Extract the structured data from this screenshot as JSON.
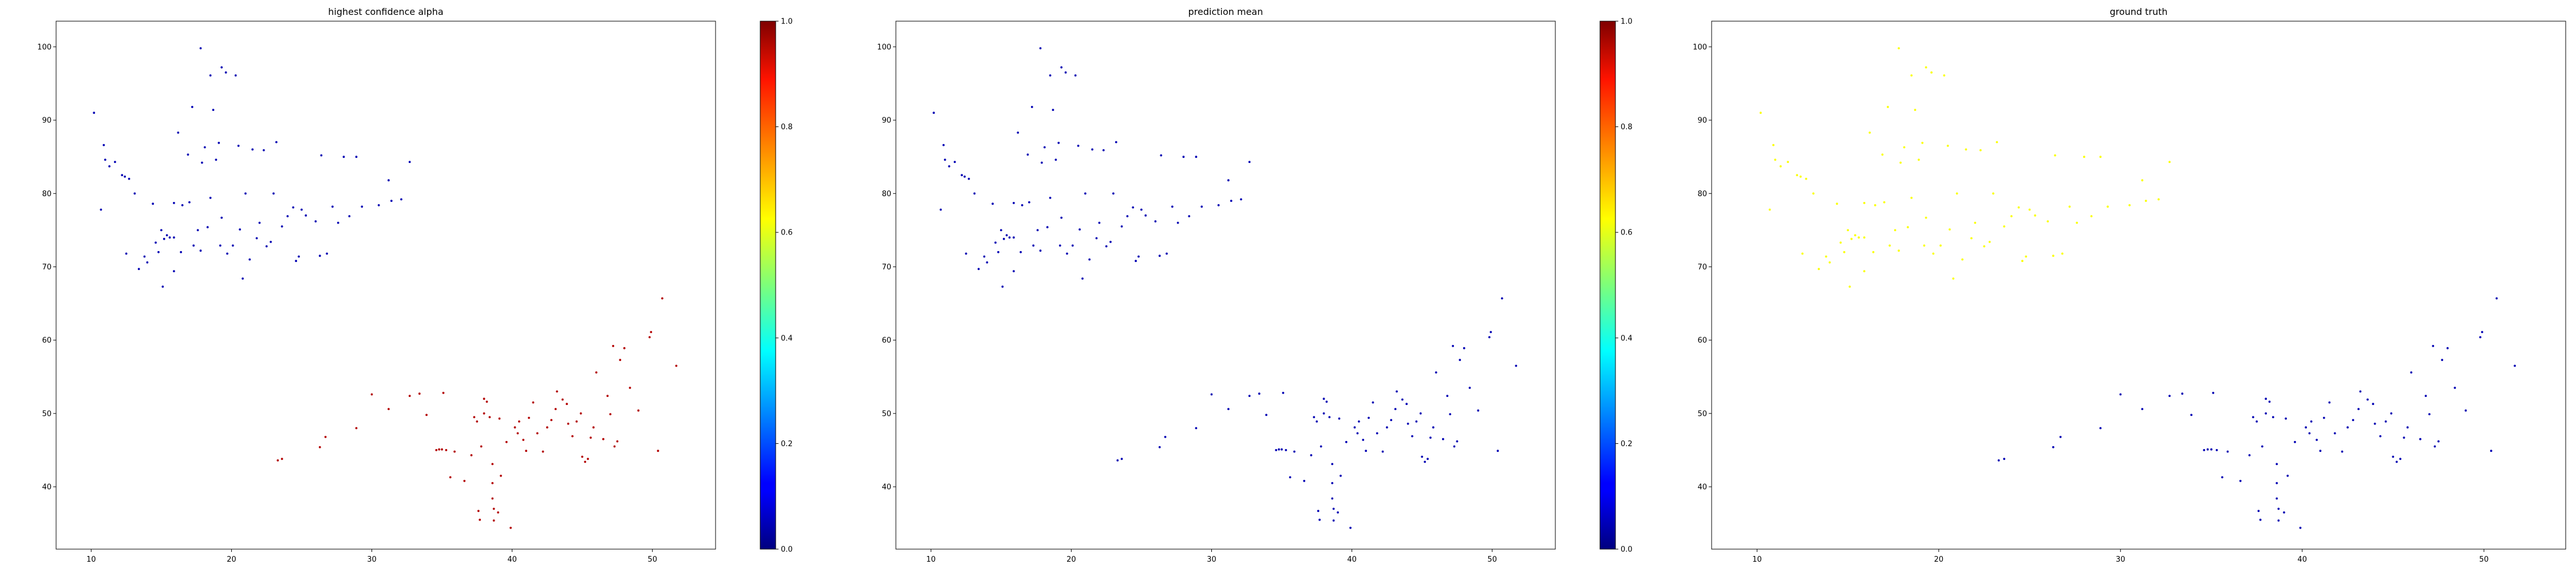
{
  "chart_data": [
    {
      "type": "scatter",
      "title": "highest confidence alpha",
      "xlim": [
        7.5,
        54.5
      ],
      "ylim": [
        31.5,
        103.5
      ],
      "xticks": [
        "10",
        "20",
        "30",
        "40",
        "50"
      ],
      "yticks": [
        "40",
        "50",
        "60",
        "70",
        "80",
        "90",
        "100"
      ],
      "colorbar": true,
      "colormap": "jet",
      "colorbar_ticks": [
        "0.0",
        "0.2",
        "0.4",
        "0.6",
        "0.8",
        "1.0"
      ],
      "color_value_top_cluster": 0.05,
      "color_value_bottom_cluster": 0.95
    },
    {
      "type": "scatter",
      "title": "prediction mean",
      "xlim": [
        7.5,
        54.5
      ],
      "ylim": [
        31.5,
        103.5
      ],
      "xticks": [
        "10",
        "20",
        "30",
        "40",
        "50"
      ],
      "yticks": [
        "40",
        "50",
        "60",
        "70",
        "80",
        "90",
        "100"
      ],
      "colorbar": true,
      "colormap": "jet",
      "colorbar_ticks": [
        "0.0",
        "0.2",
        "0.4",
        "0.6",
        "0.8",
        "1.0"
      ],
      "color_value_top_cluster": 0.05,
      "color_value_bottom_cluster": 0.05
    },
    {
      "type": "scatter",
      "title": "ground truth",
      "xlim": [
        7.5,
        54.5
      ],
      "ylim": [
        31.5,
        103.5
      ],
      "xticks": [
        "10",
        "20",
        "30",
        "40",
        "50"
      ],
      "yticks": [
        "40",
        "50",
        "60",
        "70",
        "80",
        "90",
        "100"
      ],
      "colorbar": false,
      "color_value_top_cluster": 0.62,
      "color_value_bottom_cluster": 0.05
    }
  ],
  "points": [
    [
      10.2,
      91.0
    ],
    [
      10.7,
      77.8
    ],
    [
      10.9,
      86.6
    ],
    [
      11.0,
      84.6
    ],
    [
      11.3,
      83.7
    ],
    [
      11.7,
      84.3
    ],
    [
      12.2,
      82.5
    ],
    [
      12.4,
      82.3
    ],
    [
      12.7,
      82.0
    ],
    [
      13.1,
      80.0
    ],
    [
      12.5,
      71.8
    ],
    [
      13.4,
      69.7
    ],
    [
      13.8,
      71.4
    ],
    [
      14.0,
      70.6
    ],
    [
      14.4,
      78.6
    ],
    [
      14.6,
      73.3
    ],
    [
      14.8,
      72.0
    ],
    [
      15.0,
      75.0
    ],
    [
      15.1,
      67.3
    ],
    [
      15.2,
      73.8
    ],
    [
      15.4,
      74.3
    ],
    [
      15.6,
      74.0
    ],
    [
      15.9,
      74.0
    ],
    [
      15.9,
      69.4
    ],
    [
      15.9,
      78.7
    ],
    [
      16.2,
      88.3
    ],
    [
      16.4,
      72.0
    ],
    [
      16.5,
      78.4
    ],
    [
      16.9,
      85.3
    ],
    [
      17.0,
      78.8
    ],
    [
      17.2,
      91.8
    ],
    [
      17.3,
      72.9
    ],
    [
      17.6,
      75.0
    ],
    [
      17.8,
      72.2
    ],
    [
      17.8,
      99.8
    ],
    [
      17.9,
      84.2
    ],
    [
      18.1,
      86.3
    ],
    [
      18.3,
      75.4
    ],
    [
      18.5,
      79.4
    ],
    [
      18.5,
      96.1
    ],
    [
      18.7,
      91.4
    ],
    [
      18.9,
      84.6
    ],
    [
      19.1,
      86.9
    ],
    [
      19.2,
      72.9
    ],
    [
      19.3,
      97.2
    ],
    [
      19.6,
      96.5
    ],
    [
      19.3,
      76.7
    ],
    [
      19.7,
      71.8
    ],
    [
      20.1,
      72.9
    ],
    [
      20.3,
      96.1
    ],
    [
      20.5,
      86.5
    ],
    [
      20.6,
      75.1
    ],
    [
      20.8,
      68.4
    ],
    [
      21.0,
      80.0
    ],
    [
      21.3,
      71.0
    ],
    [
      21.5,
      86.0
    ],
    [
      21.8,
      73.9
    ],
    [
      22.0,
      76.0
    ],
    [
      22.3,
      85.9
    ],
    [
      22.5,
      72.8
    ],
    [
      22.8,
      73.4
    ],
    [
      23.0,
      80.0
    ],
    [
      23.2,
      87.0
    ],
    [
      23.6,
      75.5
    ],
    [
      24.0,
      76.9
    ],
    [
      24.4,
      78.1
    ],
    [
      24.6,
      70.8
    ],
    [
      24.8,
      71.4
    ],
    [
      25.0,
      77.8
    ],
    [
      25.3,
      77.0
    ],
    [
      26.0,
      76.2
    ],
    [
      26.3,
      71.5
    ],
    [
      26.4,
      85.2
    ],
    [
      26.8,
      71.8
    ],
    [
      27.2,
      78.2
    ],
    [
      27.6,
      76.0
    ],
    [
      28.0,
      85.0
    ],
    [
      28.4,
      76.9
    ],
    [
      28.9,
      85.0
    ],
    [
      29.3,
      78.2
    ],
    [
      30.5,
      78.4
    ],
    [
      31.2,
      81.8
    ],
    [
      31.4,
      79.0
    ],
    [
      32.1,
      79.2
    ],
    [
      32.7,
      84.3
    ],
    [
      23.3,
      43.6
    ],
    [
      23.6,
      43.8
    ],
    [
      26.3,
      45.4
    ],
    [
      26.7,
      46.8
    ],
    [
      28.9,
      48.0
    ],
    [
      30.0,
      52.6
    ],
    [
      31.2,
      50.6
    ],
    [
      32.7,
      52.4
    ],
    [
      33.4,
      52.7
    ],
    [
      33.9,
      49.8
    ],
    [
      34.6,
      45.0
    ],
    [
      34.8,
      45.1
    ],
    [
      35.0,
      45.1
    ],
    [
      35.3,
      45.0
    ],
    [
      35.1,
      52.8
    ],
    [
      35.6,
      41.3
    ],
    [
      35.9,
      44.8
    ],
    [
      36.6,
      40.8
    ],
    [
      37.1,
      44.3
    ],
    [
      37.3,
      49.5
    ],
    [
      37.5,
      48.9
    ],
    [
      37.8,
      45.5
    ],
    [
      37.6,
      36.7
    ],
    [
      37.7,
      35.5
    ],
    [
      38.0,
      50.0
    ],
    [
      38.0,
      52.0
    ],
    [
      38.2,
      51.6
    ],
    [
      38.4,
      49.5
    ],
    [
      38.6,
      43.1
    ],
    [
      38.6,
      38.4
    ],
    [
      38.7,
      37.0
    ],
    [
      38.7,
      35.4
    ],
    [
      38.6,
      40.5
    ],
    [
      39.0,
      36.5
    ],
    [
      39.2,
      41.5
    ],
    [
      39.1,
      49.3
    ],
    [
      39.6,
      46.1
    ],
    [
      39.9,
      34.4
    ],
    [
      40.2,
      48.1
    ],
    [
      40.4,
      47.3
    ],
    [
      40.5,
      48.9
    ],
    [
      40.8,
      46.4
    ],
    [
      41.0,
      44.9
    ],
    [
      41.2,
      49.4
    ],
    [
      41.5,
      51.5
    ],
    [
      41.8,
      47.3
    ],
    [
      42.2,
      44.8
    ],
    [
      42.5,
      48.1
    ],
    [
      42.8,
      49.1
    ],
    [
      43.1,
      50.6
    ],
    [
      43.2,
      53.0
    ],
    [
      43.6,
      51.9
    ],
    [
      43.9,
      51.3
    ],
    [
      44.0,
      48.6
    ],
    [
      44.3,
      46.9
    ],
    [
      44.6,
      48.9
    ],
    [
      44.9,
      50.0
    ],
    [
      45.0,
      44.1
    ],
    [
      45.2,
      43.4
    ],
    [
      45.4,
      43.8
    ],
    [
      45.6,
      46.7
    ],
    [
      45.8,
      48.1
    ],
    [
      46.0,
      55.6
    ],
    [
      46.5,
      46.5
    ],
    [
      46.8,
      52.4
    ],
    [
      47.0,
      49.9
    ],
    [
      47.2,
      59.2
    ],
    [
      47.3,
      45.5
    ],
    [
      47.5,
      46.2
    ],
    [
      47.7,
      57.3
    ],
    [
      48.0,
      58.9
    ],
    [
      48.4,
      53.5
    ],
    [
      49.0,
      50.4
    ],
    [
      49.8,
      60.4
    ],
    [
      49.9,
      61.1
    ],
    [
      50.4,
      44.9
    ],
    [
      50.7,
      65.7
    ],
    [
      51.7,
      56.5
    ]
  ],
  "top_cluster_count": 85
}
